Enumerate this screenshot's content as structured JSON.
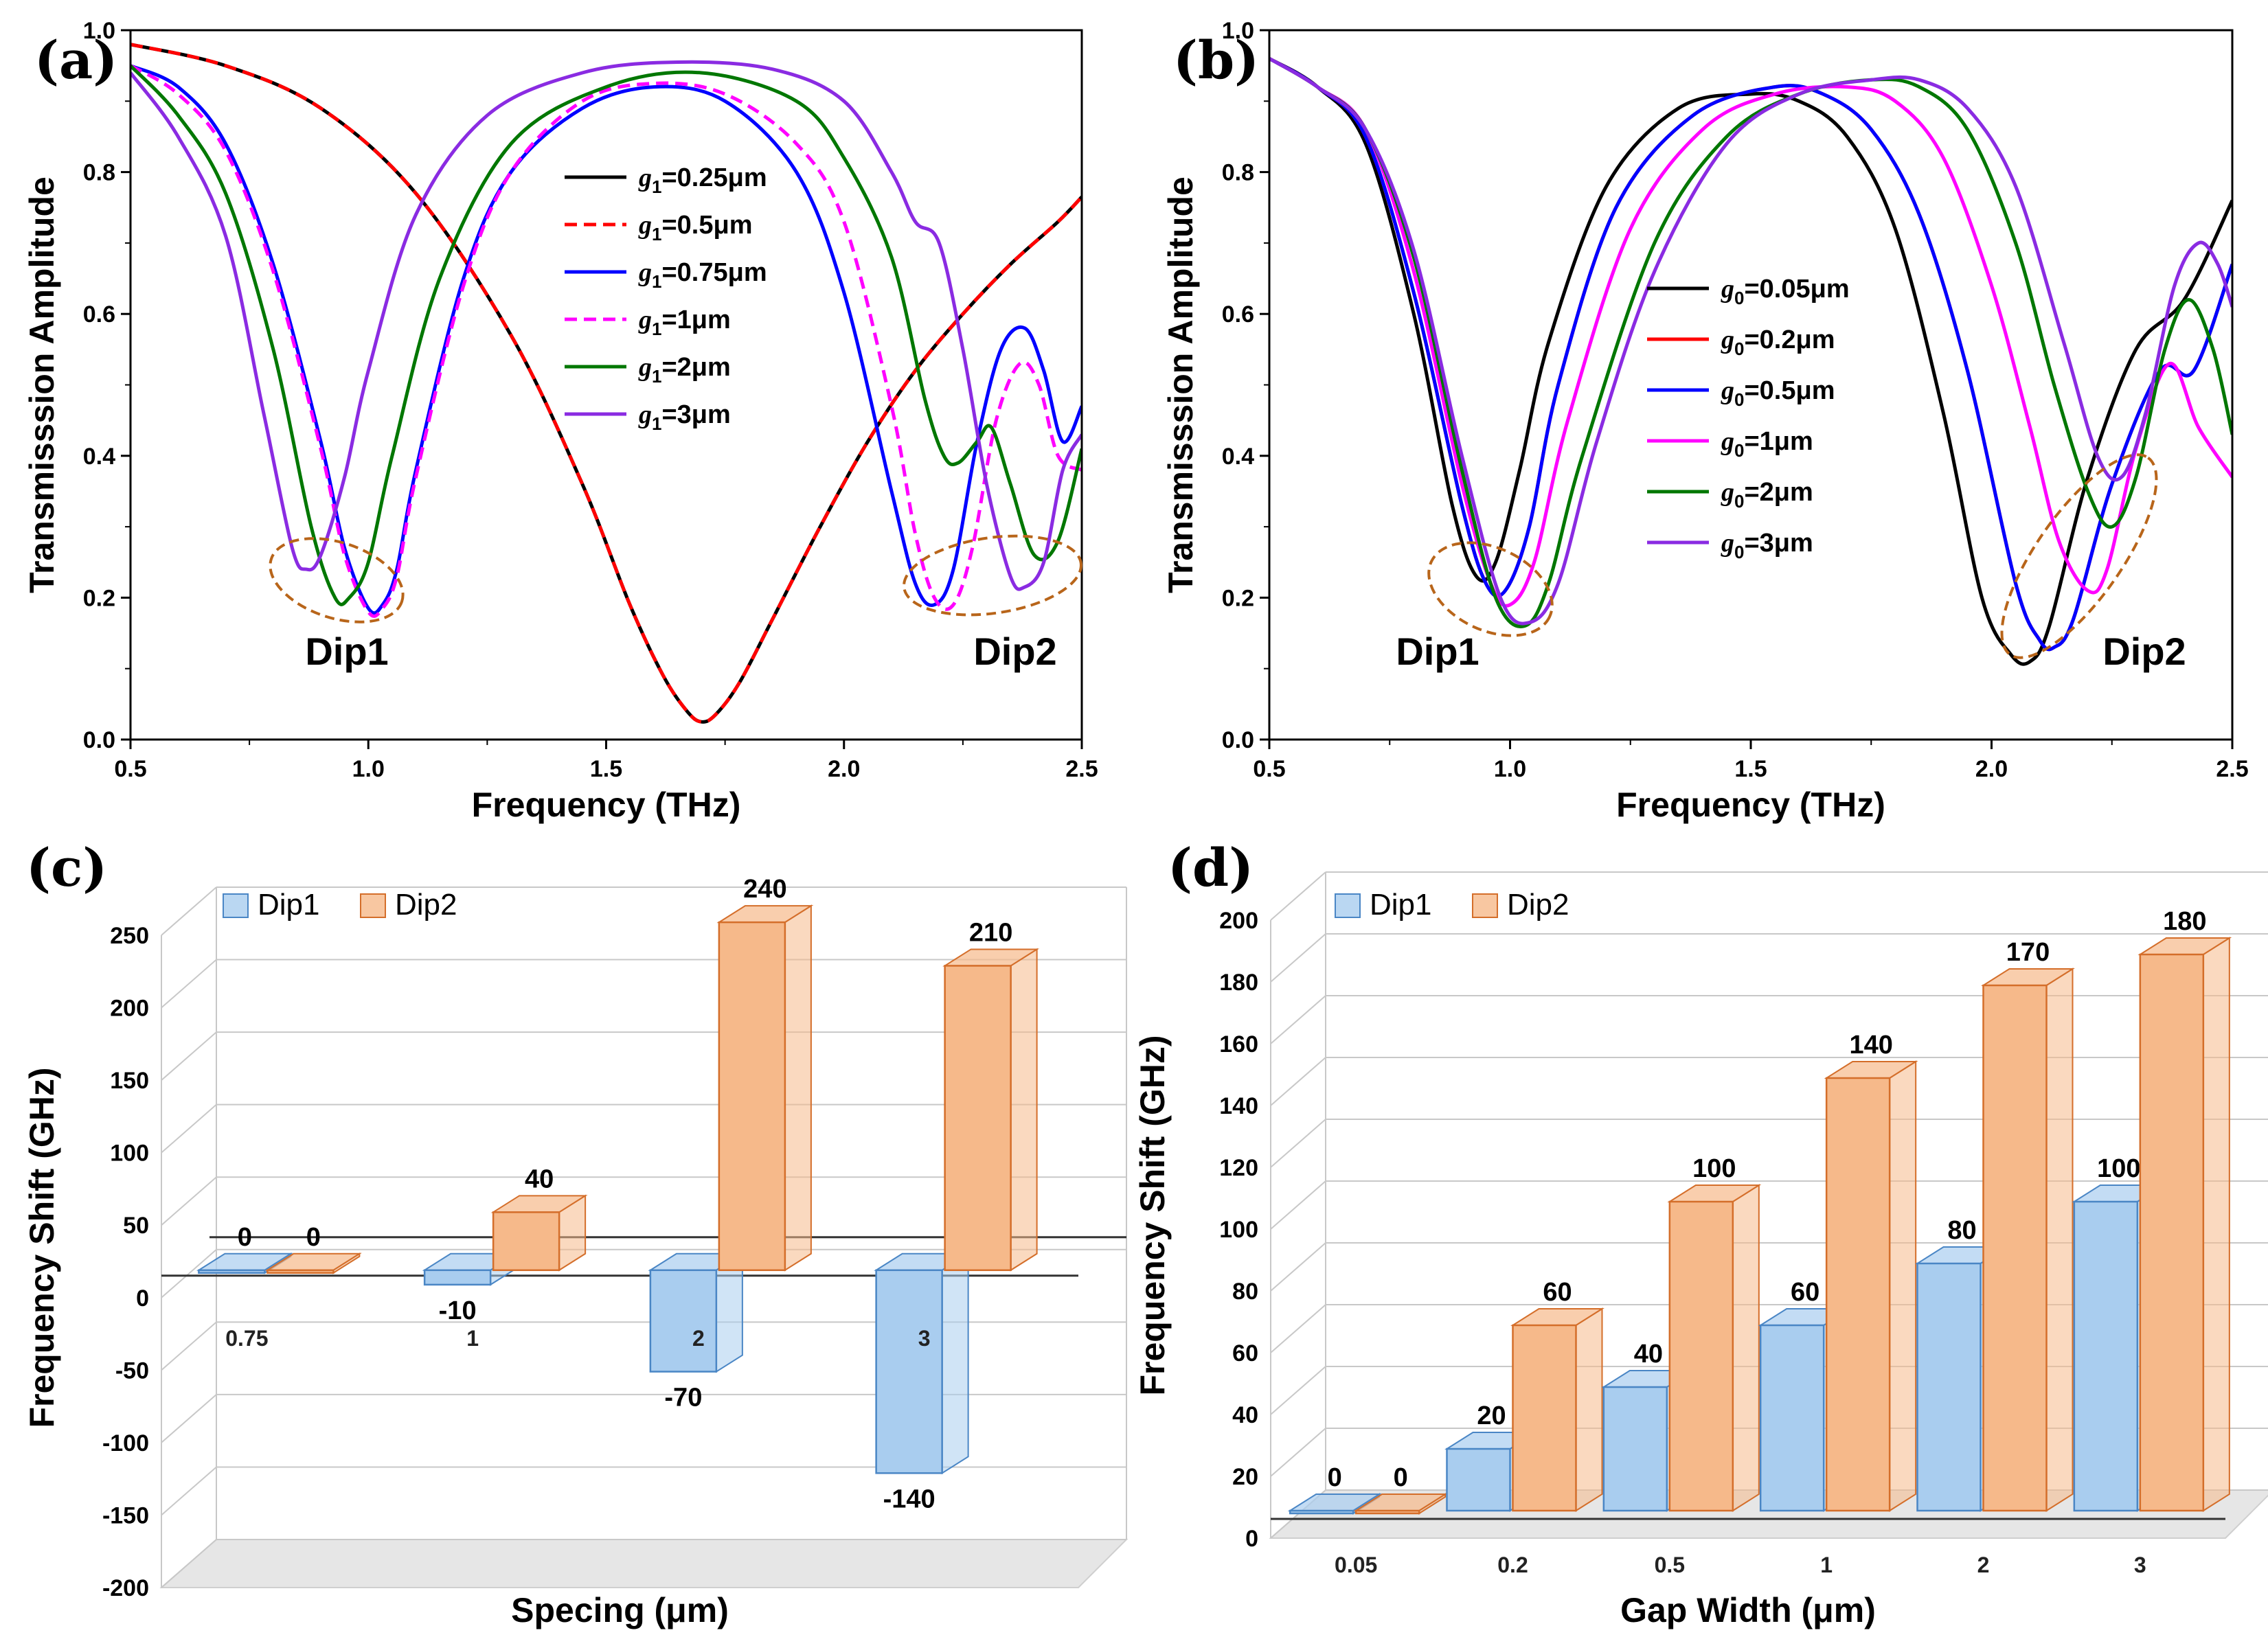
{
  "chart_data": [
    {
      "type": "line",
      "panel_label": "(a)",
      "xlabel": "Frequency (THz)",
      "ylabel": "Transmisssion Amplitude",
      "xlim": [
        0.5,
        2.5
      ],
      "ylim": [
        0.0,
        1.0
      ],
      "xticks": [
        "0.5",
        "1.0",
        "1.5",
        "2.0",
        "2.5"
      ],
      "yticks": [
        "0.0",
        "0.2",
        "0.4",
        "0.6",
        "0.8",
        "1.0"
      ],
      "legend_position": "upper-center",
      "annotations": [
        "Dip1",
        "Dip2"
      ],
      "series": [
        {
          "prefix": "g",
          "sub": "1",
          "suffix": "=0.25μm",
          "color": "#000000",
          "dash": "solid",
          "x": [
            0.5,
            0.7,
            0.9,
            1.1,
            1.3,
            1.45,
            1.55,
            1.62,
            1.67,
            1.7,
            1.73,
            1.78,
            1.85,
            1.95,
            2.05,
            2.15,
            2.25,
            2.35,
            2.45,
            2.5
          ],
          "y": [
            0.98,
            0.95,
            0.89,
            0.77,
            0.57,
            0.36,
            0.19,
            0.09,
            0.04,
            0.025,
            0.035,
            0.08,
            0.17,
            0.3,
            0.42,
            0.52,
            0.6,
            0.67,
            0.73,
            0.765
          ]
        },
        {
          "prefix": "g",
          "sub": "1",
          "suffix": "=0.5μm",
          "color": "#ff0000",
          "dash": "dashed",
          "x": [
            0.5,
            0.7,
            0.9,
            1.1,
            1.3,
            1.45,
            1.55,
            1.62,
            1.67,
            1.7,
            1.73,
            1.78,
            1.85,
            1.95,
            2.05,
            2.15,
            2.25,
            2.35,
            2.45,
            2.5
          ],
          "y": [
            0.98,
            0.95,
            0.89,
            0.77,
            0.57,
            0.36,
            0.19,
            0.09,
            0.04,
            0.025,
            0.035,
            0.08,
            0.17,
            0.3,
            0.42,
            0.52,
            0.6,
            0.67,
            0.73,
            0.765
          ]
        },
        {
          "prefix": "g",
          "sub": "1",
          "suffix": "=0.75μm",
          "color": "#0000ff",
          "dash": "solid",
          "x": [
            0.5,
            0.6,
            0.7,
            0.8,
            0.9,
            0.95,
            1.0,
            1.03,
            1.06,
            1.1,
            1.2,
            1.3,
            1.45,
            1.6,
            1.75,
            1.9,
            2.0,
            2.1,
            2.15,
            2.19,
            2.23,
            2.28,
            2.33,
            2.38,
            2.42,
            2.46,
            2.5
          ],
          "y": [
            0.95,
            0.92,
            0.84,
            0.67,
            0.42,
            0.27,
            0.185,
            0.19,
            0.24,
            0.38,
            0.65,
            0.8,
            0.89,
            0.92,
            0.9,
            0.8,
            0.63,
            0.35,
            0.22,
            0.19,
            0.24,
            0.42,
            0.55,
            0.58,
            0.52,
            0.42,
            0.47
          ]
        },
        {
          "prefix": "g",
          "sub": "1",
          "suffix": "=1μm",
          "color": "#ff00ff",
          "dash": "dashed",
          "x": [
            0.5,
            0.6,
            0.7,
            0.8,
            0.9,
            0.95,
            1.0,
            1.03,
            1.06,
            1.1,
            1.2,
            1.3,
            1.45,
            1.6,
            1.75,
            1.9,
            2.0,
            2.1,
            2.15,
            2.19,
            2.23,
            2.27,
            2.32,
            2.37,
            2.41,
            2.45,
            2.5
          ],
          "y": [
            0.95,
            0.91,
            0.83,
            0.66,
            0.41,
            0.26,
            0.18,
            0.185,
            0.23,
            0.37,
            0.64,
            0.8,
            0.9,
            0.925,
            0.91,
            0.84,
            0.73,
            0.47,
            0.29,
            0.2,
            0.19,
            0.27,
            0.45,
            0.53,
            0.5,
            0.4,
            0.38
          ]
        },
        {
          "prefix": "g",
          "sub": "1",
          "suffix": "=2μm",
          "color": "#007700",
          "dash": "solid",
          "x": [
            0.5,
            0.6,
            0.7,
            0.8,
            0.88,
            0.93,
            0.96,
            1.0,
            1.05,
            1.15,
            1.3,
            1.5,
            1.7,
            1.9,
            2.0,
            2.1,
            2.17,
            2.21,
            2.24,
            2.28,
            2.31,
            2.35,
            2.4,
            2.45,
            2.5
          ],
          "y": [
            0.95,
            0.88,
            0.77,
            0.55,
            0.3,
            0.2,
            0.2,
            0.25,
            0.4,
            0.65,
            0.84,
            0.92,
            0.94,
            0.9,
            0.82,
            0.68,
            0.48,
            0.4,
            0.39,
            0.42,
            0.44,
            0.36,
            0.26,
            0.28,
            0.41
          ]
        },
        {
          "prefix": "g",
          "sub": "1",
          "suffix": "=3μm",
          "color": "#8a2be2",
          "dash": "solid",
          "x": [
            0.5,
            0.6,
            0.7,
            0.78,
            0.84,
            0.87,
            0.9,
            0.95,
            1.0,
            1.1,
            1.25,
            1.45,
            1.65,
            1.85,
            2.0,
            2.1,
            2.15,
            2.2,
            2.25,
            2.3,
            2.35,
            2.38,
            2.42,
            2.46,
            2.5
          ],
          "y": [
            0.94,
            0.85,
            0.71,
            0.46,
            0.27,
            0.24,
            0.26,
            0.37,
            0.52,
            0.74,
            0.88,
            0.94,
            0.955,
            0.945,
            0.9,
            0.8,
            0.73,
            0.7,
            0.55,
            0.36,
            0.23,
            0.215,
            0.25,
            0.38,
            0.43
          ]
        }
      ]
    },
    {
      "type": "line",
      "panel_label": "(b)",
      "xlabel": "Frequency (THz)",
      "ylabel": "Transmisssion Amplitude",
      "xlim": [
        0.5,
        2.5
      ],
      "ylim": [
        0.0,
        1.0
      ],
      "xticks": [
        "0.5",
        "1.0",
        "1.5",
        "2.0",
        "2.5"
      ],
      "yticks": [
        "0.0",
        "0.2",
        "0.4",
        "0.6",
        "0.8",
        "1.0"
      ],
      "legend_position": "center",
      "annotations": [
        "Dip1",
        "Dip2"
      ],
      "series": [
        {
          "prefix": "g",
          "sub": "0",
          "suffix": "=0.05μm",
          "color": "#000000",
          "dash": "solid",
          "x": [
            0.5,
            0.6,
            0.7,
            0.8,
            0.88,
            0.93,
            0.97,
            1.02,
            1.08,
            1.2,
            1.35,
            1.5,
            1.6,
            1.7,
            1.8,
            1.9,
            1.98,
            2.04,
            2.08,
            2.12,
            2.2,
            2.3,
            2.4,
            2.5
          ],
          "y": [
            0.96,
            0.92,
            0.84,
            0.6,
            0.33,
            0.23,
            0.25,
            0.38,
            0.56,
            0.78,
            0.89,
            0.91,
            0.9,
            0.85,
            0.72,
            0.46,
            0.2,
            0.12,
            0.11,
            0.16,
            0.37,
            0.55,
            0.62,
            0.76
          ]
        },
        {
          "prefix": "g",
          "sub": "0",
          "suffix": "=0.2μm",
          "color": "#ff0000",
          "dash": "solid",
          "x": [
            0.5,
            0.6,
            0.7,
            0.8,
            0.9,
            0.95,
            0.99,
            1.04,
            1.1,
            1.22,
            1.38,
            1.55,
            1.65,
            1.75,
            1.85,
            1.95,
            2.05,
            2.1,
            2.13,
            2.17,
            2.25,
            2.35,
            2.42,
            2.5
          ],
          "y": [
            0.96,
            0.92,
            0.85,
            0.63,
            0.33,
            0.22,
            0.21,
            0.3,
            0.5,
            0.75,
            0.88,
            0.92,
            0.91,
            0.86,
            0.74,
            0.52,
            0.22,
            0.14,
            0.13,
            0.17,
            0.36,
            0.52,
            0.52,
            0.67
          ]
        },
        {
          "prefix": "g",
          "sub": "0",
          "suffix": "=0.5μm",
          "color": "#0000ff",
          "dash": "solid",
          "x": [
            0.5,
            0.6,
            0.7,
            0.8,
            0.9,
            0.95,
            0.99,
            1.04,
            1.1,
            1.22,
            1.38,
            1.55,
            1.65,
            1.75,
            1.85,
            1.95,
            2.05,
            2.1,
            2.13,
            2.17,
            2.25,
            2.35,
            2.42,
            2.5
          ],
          "y": [
            0.96,
            0.92,
            0.85,
            0.63,
            0.33,
            0.22,
            0.21,
            0.3,
            0.5,
            0.75,
            0.88,
            0.92,
            0.91,
            0.86,
            0.74,
            0.52,
            0.22,
            0.14,
            0.13,
            0.17,
            0.36,
            0.52,
            0.52,
            0.67
          ]
        },
        {
          "prefix": "g",
          "sub": "0",
          "suffix": "=1μm",
          "color": "#ff00ff",
          "dash": "solid",
          "x": [
            0.5,
            0.6,
            0.7,
            0.8,
            0.9,
            0.96,
            1.0,
            1.05,
            1.12,
            1.25,
            1.4,
            1.55,
            1.7,
            1.8,
            1.9,
            2.0,
            2.08,
            2.14,
            2.2,
            2.24,
            2.3,
            2.37,
            2.43,
            2.5
          ],
          "y": [
            0.96,
            0.92,
            0.86,
            0.66,
            0.36,
            0.22,
            0.19,
            0.25,
            0.45,
            0.72,
            0.86,
            0.91,
            0.92,
            0.9,
            0.82,
            0.64,
            0.44,
            0.28,
            0.21,
            0.24,
            0.41,
            0.53,
            0.44,
            0.37
          ]
        },
        {
          "prefix": "g",
          "sub": "0",
          "suffix": "=2μm",
          "color": "#007700",
          "dash": "solid",
          "x": [
            0.5,
            0.6,
            0.7,
            0.8,
            0.9,
            0.97,
            1.03,
            1.08,
            1.15,
            1.3,
            1.45,
            1.6,
            1.75,
            1.85,
            1.95,
            2.05,
            2.13,
            2.2,
            2.25,
            2.3,
            2.36,
            2.41,
            2.46,
            2.5
          ],
          "y": [
            0.96,
            0.92,
            0.86,
            0.68,
            0.38,
            0.2,
            0.16,
            0.22,
            0.4,
            0.7,
            0.85,
            0.91,
            0.93,
            0.92,
            0.86,
            0.7,
            0.5,
            0.35,
            0.3,
            0.37,
            0.55,
            0.62,
            0.55,
            0.43
          ]
        },
        {
          "prefix": "g",
          "sub": "0",
          "suffix": "=3μm",
          "color": "#8a2be2",
          "dash": "solid",
          "x": [
            0.5,
            0.6,
            0.7,
            0.8,
            0.9,
            0.98,
            1.04,
            1.1,
            1.18,
            1.3,
            1.45,
            1.6,
            1.75,
            1.85,
            1.95,
            2.05,
            2.15,
            2.22,
            2.27,
            2.32,
            2.38,
            2.43,
            2.47,
            2.5
          ],
          "y": [
            0.96,
            0.92,
            0.86,
            0.69,
            0.4,
            0.2,
            0.165,
            0.22,
            0.42,
            0.66,
            0.84,
            0.91,
            0.93,
            0.93,
            0.89,
            0.78,
            0.56,
            0.4,
            0.37,
            0.46,
            0.64,
            0.7,
            0.67,
            0.61
          ]
        }
      ]
    },
    {
      "type": "bar",
      "panel_label": "(c)",
      "xlabel": "Specing (μm)",
      "ylabel": "Frequency Shift (GHz)",
      "ylim": [
        -200,
        250
      ],
      "yticks": [
        "-200",
        "-150",
        "-100",
        "-50",
        "0",
        "50",
        "100",
        "150",
        "200",
        "250"
      ],
      "categories": [
        "0.75",
        "1",
        "2",
        "3"
      ],
      "legend_position": "top-left",
      "series": [
        {
          "name": "Dip1",
          "values": [
            0,
            -10,
            -70,
            -140
          ],
          "labels": [
            "0",
            "-10",
            "-70",
            "-140"
          ],
          "color": "#a9cdef",
          "edge": "#4a86c5"
        },
        {
          "name": "Dip2",
          "values": [
            0,
            40,
            240,
            210
          ],
          "labels": [
            "0",
            "40",
            "240",
            "210"
          ],
          "color": "#f6b98a",
          "edge": "#d46e2a"
        }
      ]
    },
    {
      "type": "bar",
      "panel_label": "(d)",
      "xlabel": "Gap Width (μm)",
      "ylabel": "Frequency Shift (GHz)",
      "ylim": [
        0,
        200
      ],
      "yticks": [
        "0",
        "20",
        "40",
        "60",
        "80",
        "100",
        "120",
        "140",
        "160",
        "180",
        "200"
      ],
      "categories": [
        "0.05",
        "0.2",
        "0.5",
        "1",
        "2",
        "3"
      ],
      "legend_position": "top-left",
      "series": [
        {
          "name": "Dip1",
          "values": [
            0,
            20,
            40,
            60,
            80,
            100
          ],
          "labels": [
            "0",
            "20",
            "40",
            "60",
            "80",
            "100"
          ],
          "color": "#a9cdef",
          "edge": "#4a86c5"
        },
        {
          "name": "Dip2",
          "values": [
            0,
            60,
            100,
            140,
            170,
            180
          ],
          "labels": [
            "0",
            "60",
            "100",
            "140",
            "170",
            "180"
          ],
          "color": "#f6b98a",
          "edge": "#d46e2a"
        }
      ]
    }
  ],
  "colors": {
    "dip_ellipse": "#b8651a",
    "grid": "#c8c8c8",
    "floor": "#e6e6e6"
  }
}
